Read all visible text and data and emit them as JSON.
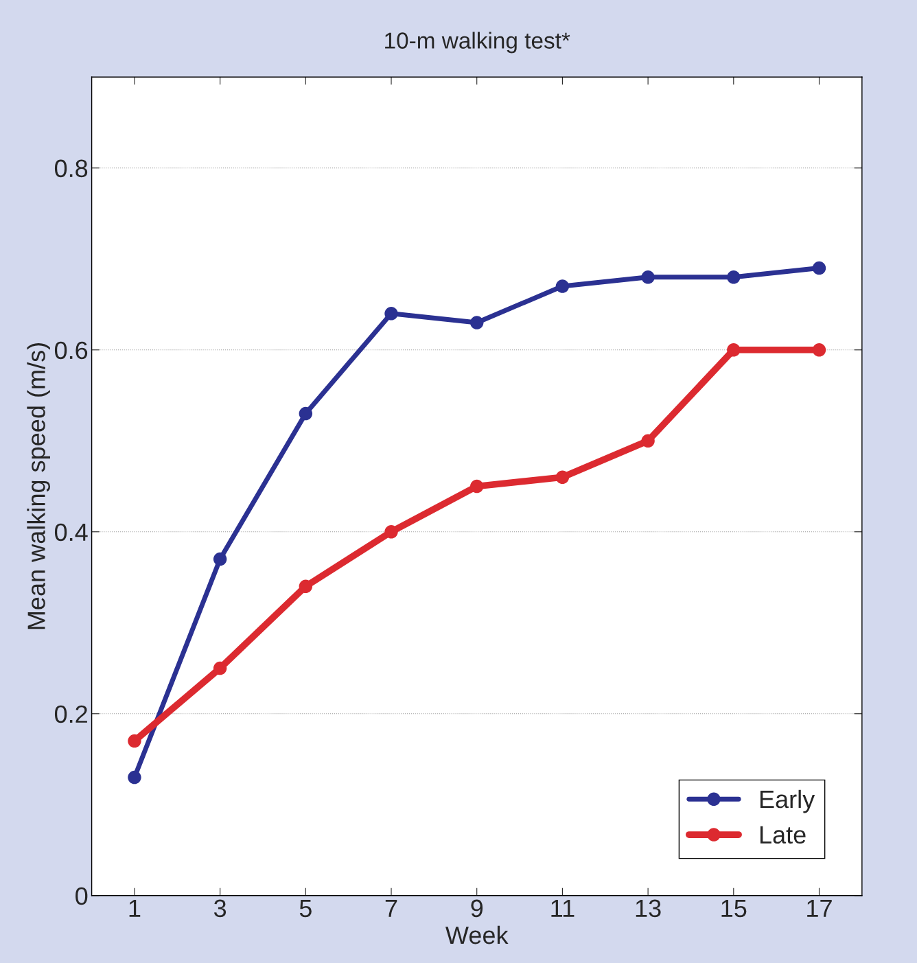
{
  "chart_data": {
    "type": "line",
    "title": "10-m walking test*",
    "xlabel": "Week",
    "ylabel": "Mean walking speed (m/s)",
    "x": [
      1,
      3,
      5,
      7,
      9,
      11,
      13,
      15,
      17
    ],
    "series": [
      {
        "name": "Early",
        "color": "#2b3192",
        "values": [
          0.13,
          0.37,
          0.53,
          0.64,
          0.63,
          0.67,
          0.68,
          0.68,
          0.69
        ]
      },
      {
        "name": "Late",
        "color": "#dc2a30",
        "values": [
          0.17,
          0.25,
          0.34,
          0.4,
          0.45,
          0.46,
          0.5,
          0.6,
          0.6
        ]
      }
    ],
    "xlim": [
      0,
      18
    ],
    "ylim": [
      0,
      0.9
    ],
    "xticks": [
      1,
      3,
      5,
      7,
      9,
      11,
      13,
      15,
      17
    ],
    "yticks": [
      0,
      0.2,
      0.4,
      0.6,
      0.8
    ],
    "grid": "y",
    "legend": "bottom right",
    "marker": "circle",
    "line_style": "solid"
  }
}
